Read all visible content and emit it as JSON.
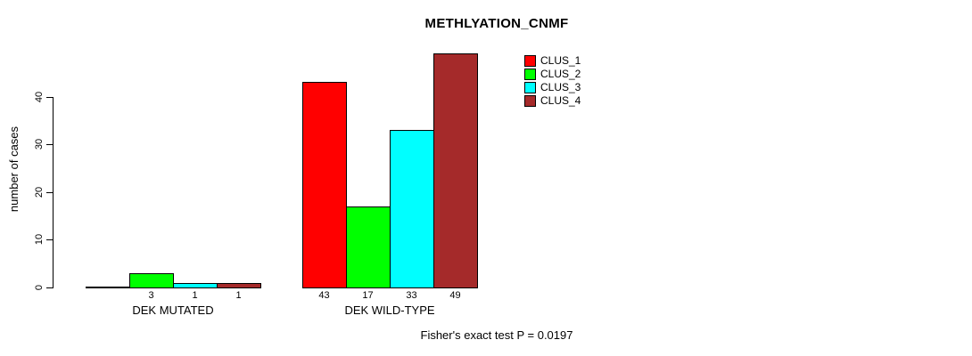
{
  "chart_data": {
    "type": "bar",
    "title": "METHLYATION_CNMF",
    "xlabel": "",
    "ylabel": "number of cases",
    "annotation": "Fisher's exact test P = 0.0197",
    "categories": [
      "DEK MUTATED",
      "DEK WILD-TYPE"
    ],
    "series_names": [
      "CLUS_1",
      "CLUS_2",
      "CLUS_3",
      "CLUS_4"
    ],
    "colors": [
      "#FF0000",
      "#00FF00",
      "#00FFFF",
      "#A52A2A"
    ],
    "series": [
      {
        "name": "CLUS_1",
        "color": "#FF0000",
        "values": [
          0,
          43
        ]
      },
      {
        "name": "CLUS_2",
        "color": "#00FF00",
        "values": [
          3,
          17
        ]
      },
      {
        "name": "CLUS_3",
        "color": "#00FFFF",
        "values": [
          1,
          33
        ]
      },
      {
        "name": "CLUS_4",
        "color": "#A52A2A",
        "values": [
          1,
          49
        ]
      }
    ],
    "groups": [
      {
        "label": "DEK MUTATED",
        "values": [
          0,
          3,
          1,
          1
        ],
        "value_labels": [
          "",
          "3",
          "1",
          "1"
        ]
      },
      {
        "label": "DEK WILD-TYPE",
        "values": [
          43,
          17,
          33,
          49
        ],
        "value_labels": [
          "43",
          "17",
          "33",
          "49"
        ]
      }
    ],
    "yticks": [
      0,
      10,
      20,
      30,
      40
    ],
    "ylim": [
      0,
      50
    ],
    "grid": false,
    "legend_position": "inside-top-right",
    "axis_color": "#000000",
    "bar_border_color": "#000000",
    "background_color": "#FFFFFF"
  }
}
